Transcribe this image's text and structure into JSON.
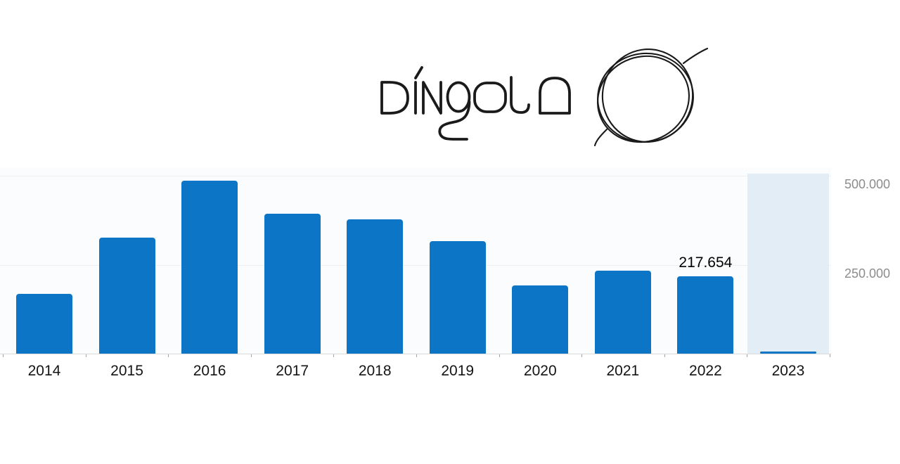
{
  "logo": {
    "brand_text": "DÍNGOLA",
    "doodle": "hand-drawn circle scribble",
    "ink_color": "#1a1a1a"
  },
  "chart_data": {
    "type": "bar",
    "title": "",
    "xlabel": "",
    "ylabel": "",
    "legend": false,
    "grid": true,
    "y_axis_side": "right",
    "categories": [
      "2014",
      "2015",
      "2016",
      "2017",
      "2018",
      "2019",
      "2020",
      "2021",
      "2022",
      "2023"
    ],
    "values": [
      168000,
      326000,
      486000,
      392000,
      377000,
      316000,
      192000,
      233000,
      217654,
      6000
    ],
    "value_labels": [
      "",
      "",
      "",
      "",
      "",
      "",
      "",
      "",
      "217.654",
      ""
    ],
    "highlighted_category": "2023",
    "ylim": [
      0,
      520000
    ],
    "y_gridlines": [
      {
        "value": 250000,
        "label": "250.000"
      },
      {
        "value": 500000,
        "label": "500.000"
      }
    ],
    "colors": {
      "bar": "#0d75c5",
      "highlight_band": "#e3edf6",
      "plot_bg": "#fbfcfd",
      "gridline": "#efefef",
      "axis_line": "#d9d9d9",
      "tick": "#a5a5a5",
      "y_label_text": "#8c8c8c",
      "x_label_text": "#141414",
      "value_label_text": "#000000"
    }
  }
}
